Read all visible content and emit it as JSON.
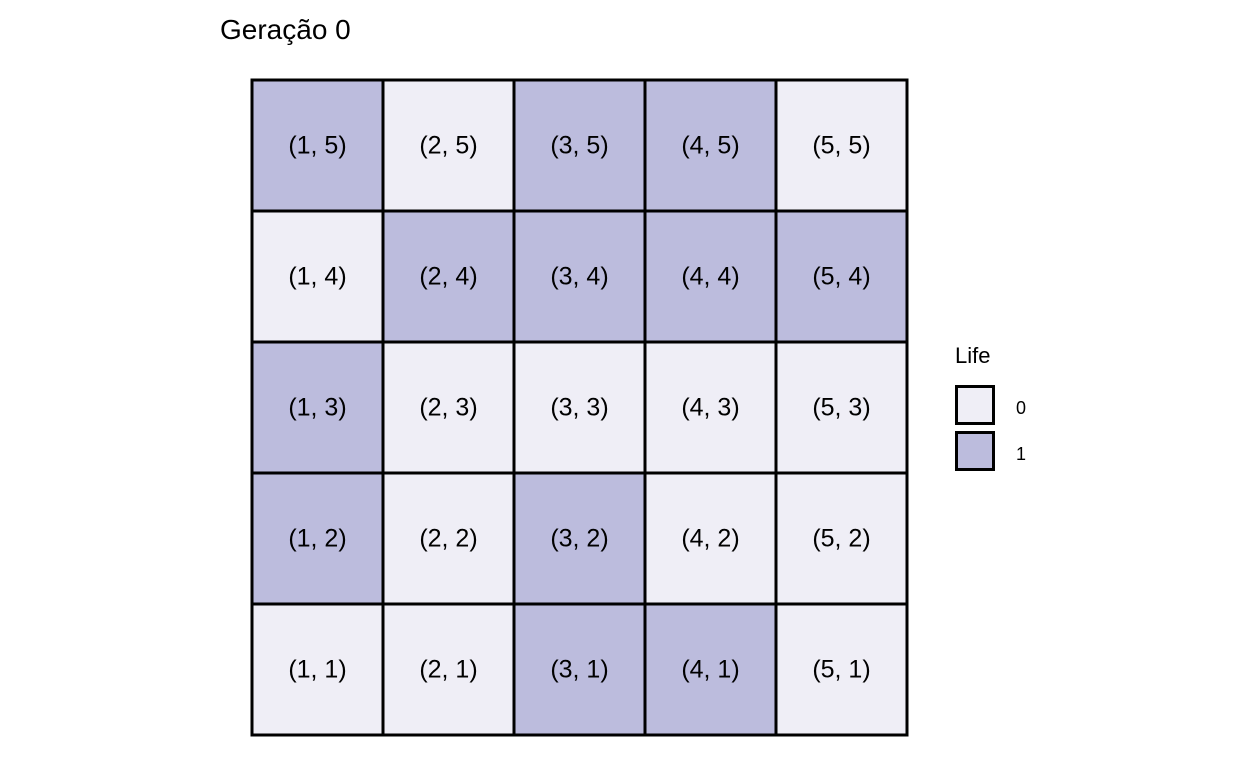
{
  "chart_data": {
    "type": "heatmap",
    "title": "Geração 0",
    "grid_size": 5,
    "cells": [
      {
        "x": 1,
        "y": 5,
        "label": "(1, 5)",
        "life": 1
      },
      {
        "x": 2,
        "y": 5,
        "label": "(2, 5)",
        "life": 0
      },
      {
        "x": 3,
        "y": 5,
        "label": "(3, 5)",
        "life": 1
      },
      {
        "x": 4,
        "y": 5,
        "label": "(4, 5)",
        "life": 1
      },
      {
        "x": 5,
        "y": 5,
        "label": "(5, 5)",
        "life": 0
      },
      {
        "x": 1,
        "y": 4,
        "label": "(1, 4)",
        "life": 0
      },
      {
        "x": 2,
        "y": 4,
        "label": "(2, 4)",
        "life": 1
      },
      {
        "x": 3,
        "y": 4,
        "label": "(3, 4)",
        "life": 1
      },
      {
        "x": 4,
        "y": 4,
        "label": "(4, 4)",
        "life": 1
      },
      {
        "x": 5,
        "y": 4,
        "label": "(5, 4)",
        "life": 1
      },
      {
        "x": 1,
        "y": 3,
        "label": "(1, 3)",
        "life": 1
      },
      {
        "x": 2,
        "y": 3,
        "label": "(2, 3)",
        "life": 0
      },
      {
        "x": 3,
        "y": 3,
        "label": "(3, 3)",
        "life": 0
      },
      {
        "x": 4,
        "y": 3,
        "label": "(4, 3)",
        "life": 0
      },
      {
        "x": 5,
        "y": 3,
        "label": "(5, 3)",
        "life": 0
      },
      {
        "x": 1,
        "y": 2,
        "label": "(1, 2)",
        "life": 1
      },
      {
        "x": 2,
        "y": 2,
        "label": "(2, 2)",
        "life": 0
      },
      {
        "x": 3,
        "y": 2,
        "label": "(3, 2)",
        "life": 1
      },
      {
        "x": 4,
        "y": 2,
        "label": "(4, 2)",
        "life": 0
      },
      {
        "x": 5,
        "y": 2,
        "label": "(5, 2)",
        "life": 0
      },
      {
        "x": 1,
        "y": 1,
        "label": "(1, 1)",
        "life": 0
      },
      {
        "x": 2,
        "y": 1,
        "label": "(2, 1)",
        "life": 0
      },
      {
        "x": 3,
        "y": 1,
        "label": "(3, 1)",
        "life": 1
      },
      {
        "x": 4,
        "y": 1,
        "label": "(4, 1)",
        "life": 1
      },
      {
        "x": 5,
        "y": 1,
        "label": "(5, 1)",
        "life": 0
      }
    ],
    "legend": {
      "title": "Life",
      "entries": [
        {
          "value": 0,
          "label": "0",
          "color": "#efeef6"
        },
        {
          "value": 1,
          "label": "1",
          "color": "#bcbcdd"
        }
      ],
      "placement": "right"
    },
    "colors": {
      "dead": "#efeef6",
      "alive": "#bcbcdd",
      "border": "#000000"
    },
    "grid": false
  }
}
